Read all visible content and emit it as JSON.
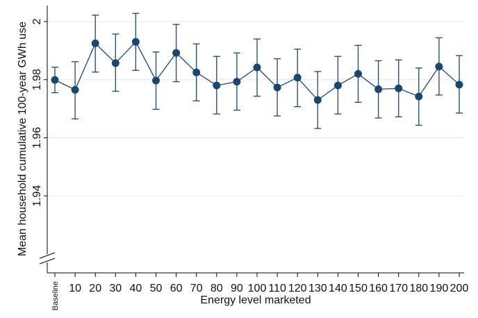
{
  "chart_data": {
    "type": "line",
    "title": "",
    "xlabel": "Energy level marketed",
    "ylabel": "Mean household cumulative 100-year GWh use",
    "categories": [
      "Baseline",
      "10",
      "20",
      "30",
      "40",
      "50",
      "60",
      "70",
      "80",
      "90",
      "100",
      "110",
      "120",
      "130",
      "140",
      "150",
      "160",
      "170",
      "180",
      "190",
      "200"
    ],
    "series": [
      {
        "values": [
          1.9799,
          1.9765,
          1.9925,
          1.9857,
          1.993,
          1.9797,
          1.9892,
          1.9825,
          1.978,
          1.9793,
          1.9842,
          1.9773,
          1.9807,
          1.973,
          1.978,
          1.982,
          1.9767,
          1.977,
          1.9742,
          1.9845,
          1.9783
        ],
        "lower": [
          1.9755,
          1.9665,
          1.9826,
          1.976,
          1.9832,
          1.9698,
          1.9793,
          1.9727,
          1.9682,
          1.9695,
          1.9743,
          1.9675,
          1.9707,
          1.9632,
          1.9682,
          1.9722,
          1.9668,
          1.9672,
          1.9643,
          1.9747,
          1.9685
        ],
        "upper": [
          1.9843,
          1.9862,
          2.0022,
          1.9957,
          2.0028,
          1.9895,
          1.999,
          1.9923,
          1.988,
          1.9892,
          1.994,
          1.9872,
          1.9905,
          1.9828,
          1.988,
          1.9918,
          1.9865,
          1.9868,
          1.984,
          1.9944,
          1.9883
        ]
      }
    ],
    "yticks": [
      "1.94",
      "1.96",
      "1.98",
      "2"
    ],
    "ytick_values": [
      1.94,
      1.96,
      1.98,
      2.0
    ],
    "ylim": [
      1.9135,
      2.0055
    ],
    "grid": "horizontal",
    "axis_break": "y",
    "legend": "none",
    "colors": {
      "series": "#1a476f",
      "grid": "#eaeaea",
      "axis": "#000000"
    }
  }
}
